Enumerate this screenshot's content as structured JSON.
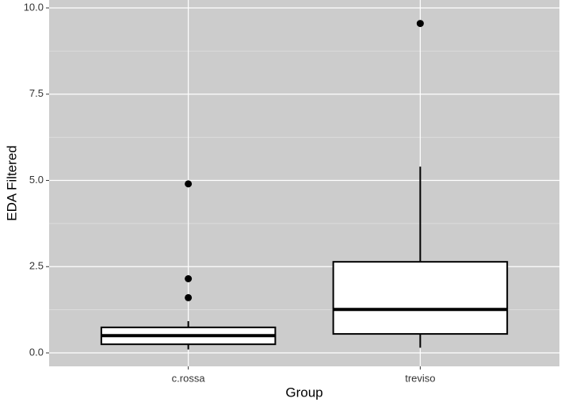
{
  "chart_data": {
    "type": "boxplot",
    "x_label": "Group",
    "y_label": "EDA Filtered",
    "categories": [
      "c.rossa",
      "treviso"
    ],
    "boxes": [
      {
        "whisker_low": 0.1,
        "q1": 0.25,
        "median": 0.5,
        "q3": 0.74,
        "whisker_high": 0.92,
        "outliers": [
          4.9,
          2.15,
          1.6
        ]
      },
      {
        "whisker_low": 0.15,
        "q1": 0.55,
        "median": 1.26,
        "q3": 2.64,
        "whisker_high": 5.4,
        "outliers": [
          9.55
        ]
      }
    ],
    "ylim": [
      -0.39,
      10.23
    ],
    "yticks": [
      {
        "value": 0,
        "label": "0.0"
      },
      2.5,
      {
        "value": 5,
        "label": "5.0"
      },
      7.5,
      {
        "value": 10,
        "label": "10.0"
      }
    ],
    "grid": true,
    "panel_color": "#cccccc",
    "box_fill": "#ffffff",
    "line_color": "#000000"
  }
}
